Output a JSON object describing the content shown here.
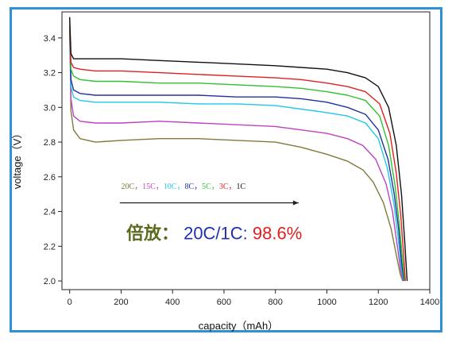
{
  "chart_data": {
    "type": "line",
    "xlabel": "capacity（mAh）",
    "ylabel": "voltage（V）",
    "xlim": [
      -30,
      1400
    ],
    "ylim": [
      1.95,
      3.55
    ],
    "x_ticks": [
      0,
      200,
      400,
      600,
      800,
      1000,
      1200,
      1400
    ],
    "y_ticks": [
      2.0,
      2.2,
      2.4,
      2.6,
      2.8,
      3.0,
      3.2,
      3.4
    ],
    "grid": false,
    "series": [
      {
        "name": "20C",
        "color": "#807a3a",
        "x": [
          0,
          5,
          15,
          40,
          100,
          200,
          350,
          500,
          650,
          800,
          900,
          1000,
          1080,
          1140,
          1180,
          1220,
          1250,
          1270,
          1285,
          1295
        ],
        "y": [
          3.52,
          2.98,
          2.87,
          2.82,
          2.8,
          2.81,
          2.82,
          2.82,
          2.81,
          2.8,
          2.77,
          2.73,
          2.69,
          2.64,
          2.57,
          2.45,
          2.3,
          2.15,
          2.04,
          2.0
        ]
      },
      {
        "name": "15C",
        "color": "#c040c0",
        "x": [
          0,
          5,
          15,
          40,
          100,
          200,
          350,
          500,
          650,
          800,
          900,
          1000,
          1080,
          1140,
          1190,
          1230,
          1255,
          1272,
          1286,
          1296
        ],
        "y": [
          3.45,
          3.05,
          2.95,
          2.92,
          2.91,
          2.91,
          2.92,
          2.91,
          2.9,
          2.89,
          2.87,
          2.85,
          2.82,
          2.78,
          2.7,
          2.56,
          2.4,
          2.22,
          2.07,
          2.0
        ]
      },
      {
        "name": "10C",
        "color": "#20c8e8",
        "x": [
          0,
          5,
          15,
          40,
          100,
          200,
          350,
          500,
          650,
          800,
          900,
          1000,
          1080,
          1150,
          1200,
          1235,
          1260,
          1276,
          1289,
          1298
        ],
        "y": [
          3.42,
          3.12,
          3.06,
          3.04,
          3.03,
          3.03,
          3.03,
          3.02,
          3.02,
          3.01,
          2.99,
          2.97,
          2.95,
          2.91,
          2.82,
          2.65,
          2.45,
          2.26,
          2.08,
          2.0
        ]
      },
      {
        "name": "8C",
        "color": "#2030a0",
        "x": [
          0,
          5,
          15,
          40,
          100,
          200,
          350,
          500,
          650,
          800,
          900,
          1000,
          1080,
          1150,
          1200,
          1238,
          1262,
          1279,
          1291,
          1300
        ],
        "y": [
          3.44,
          3.16,
          3.1,
          3.08,
          3.07,
          3.07,
          3.07,
          3.07,
          3.06,
          3.06,
          3.05,
          3.03,
          3.0,
          2.96,
          2.87,
          2.7,
          2.5,
          2.3,
          2.1,
          2.0
        ]
      },
      {
        "name": "5C",
        "color": "#30c030",
        "x": [
          0,
          5,
          15,
          40,
          100,
          200,
          350,
          500,
          650,
          800,
          900,
          1000,
          1080,
          1150,
          1205,
          1240,
          1265,
          1282,
          1294,
          1302
        ],
        "y": [
          3.46,
          3.22,
          3.18,
          3.16,
          3.15,
          3.15,
          3.14,
          3.14,
          3.13,
          3.12,
          3.11,
          3.09,
          3.07,
          3.04,
          2.95,
          2.78,
          2.55,
          2.32,
          2.12,
          2.0
        ]
      },
      {
        "name": "3C",
        "color": "#e02020",
        "x": [
          0,
          5,
          15,
          40,
          100,
          200,
          350,
          500,
          650,
          800,
          900,
          1000,
          1080,
          1150,
          1205,
          1245,
          1270,
          1287,
          1298,
          1305
        ],
        "y": [
          3.47,
          3.26,
          3.23,
          3.22,
          3.21,
          3.21,
          3.2,
          3.19,
          3.18,
          3.17,
          3.16,
          3.14,
          3.12,
          3.09,
          3.02,
          2.85,
          2.62,
          2.38,
          2.16,
          2.0
        ]
      },
      {
        "name": "1C",
        "color": "#111111",
        "x": [
          0,
          5,
          15,
          40,
          100,
          200,
          350,
          500,
          650,
          800,
          900,
          1000,
          1080,
          1150,
          1200,
          1240,
          1270,
          1290,
          1303,
          1312
        ],
        "y": [
          3.52,
          3.31,
          3.28,
          3.28,
          3.28,
          3.28,
          3.27,
          3.26,
          3.25,
          3.24,
          3.23,
          3.22,
          3.2,
          3.17,
          3.12,
          3.0,
          2.78,
          2.5,
          2.22,
          2.0
        ]
      }
    ],
    "rate_legend": {
      "separator": "，",
      "start": {
        "x": 200,
        "y": 2.53
      },
      "arrow_from": {
        "x": 195,
        "y": 2.45
      },
      "arrow_to": {
        "x": 890,
        "y": 2.45
      }
    },
    "annotation": {
      "part1": "倍放：",
      "part2": "20C/1C: ",
      "part3": "98.6%",
      "color1": "#5a6a1e",
      "color2": "#2030b0",
      "color3": "#e02020",
      "anchor": {
        "x": 220,
        "y": 2.24
      }
    }
  }
}
